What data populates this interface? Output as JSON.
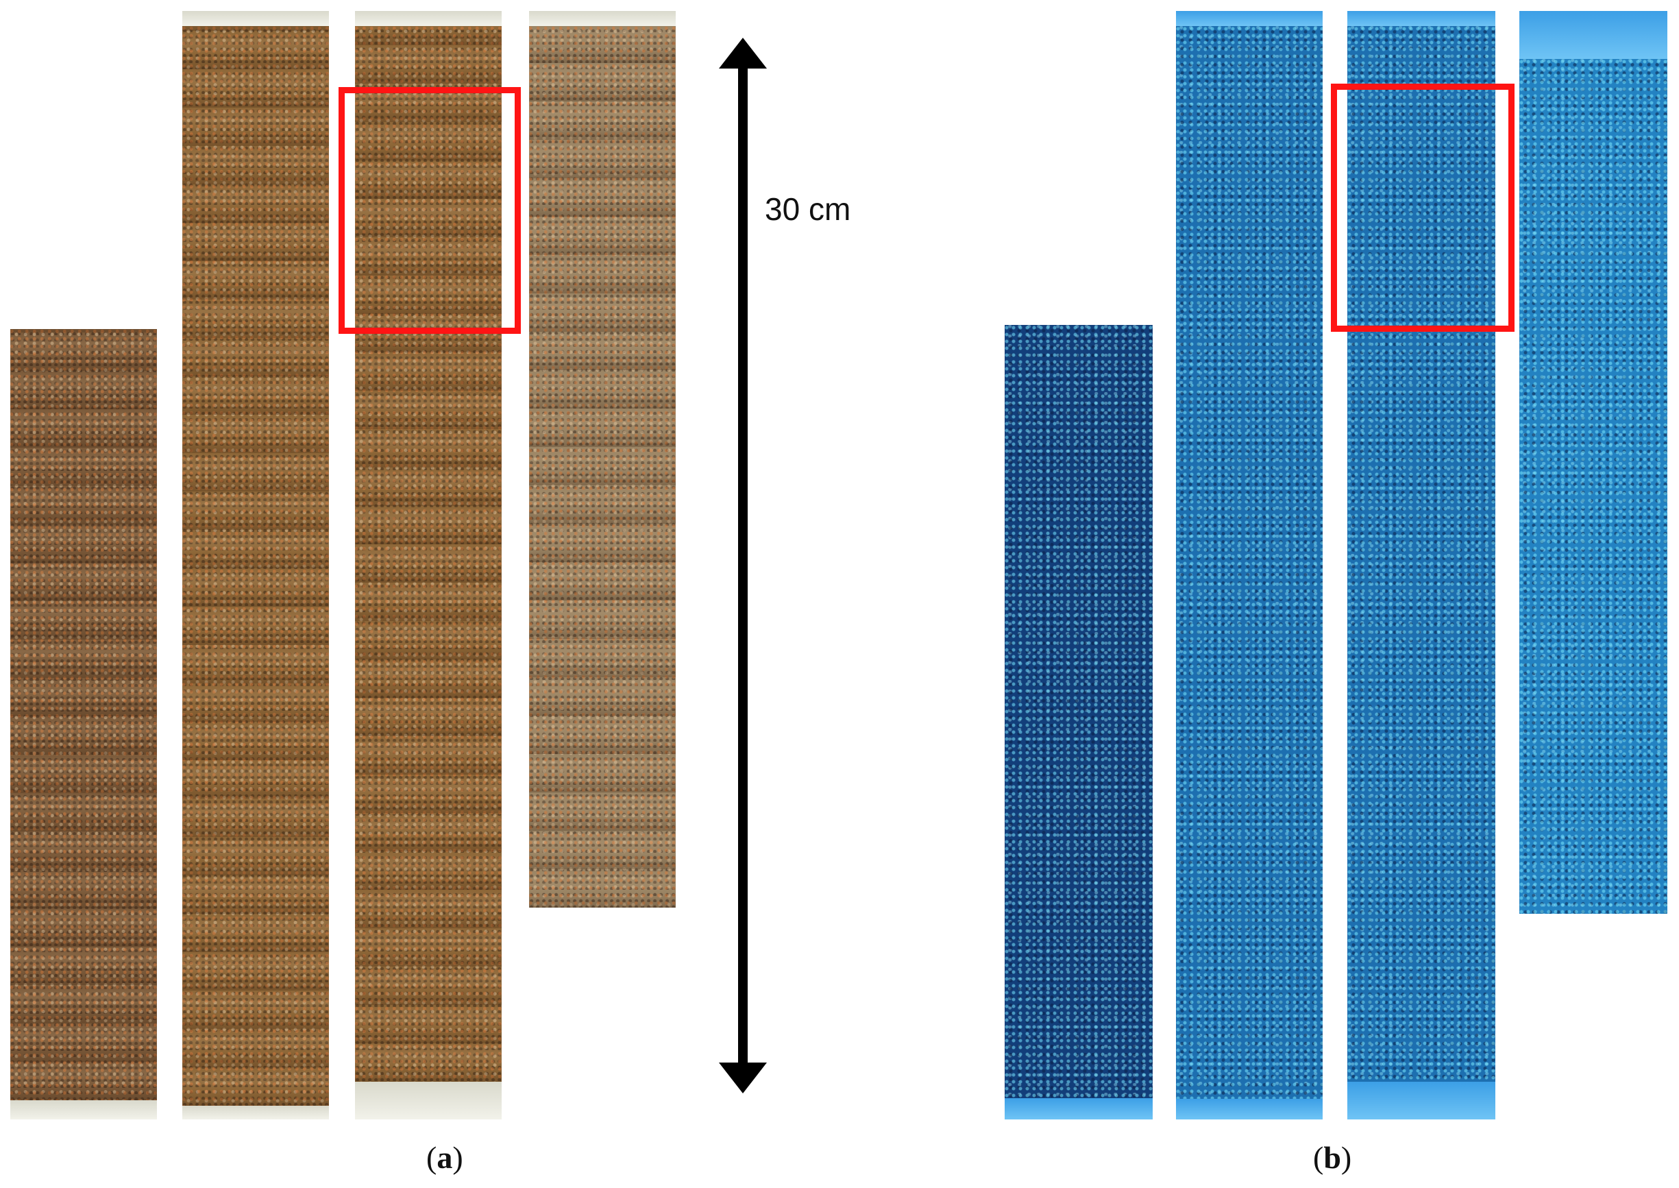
{
  "figure": {
    "scale_bar": {
      "label": "30 cm",
      "length_cm": 30
    },
    "panels": [
      {
        "id": "a",
        "label_open": "(",
        "label_letter": "a",
        "label_close": ")",
        "kind": "visible-light sediment core photos",
        "core_count": 4,
        "highlighted_core_index": 3
      },
      {
        "id": "b",
        "label_open": "(",
        "label_letter": "b",
        "label_close": ")",
        "kind": "UV fluorescence sediment core photos",
        "core_count": 4,
        "highlighted_core_index": 3
      }
    ],
    "colors": {
      "highlight": "#ff1414",
      "scale_bar": "#000000",
      "uv_base": "#1d6fb0",
      "visible_base": "#8a6238"
    }
  }
}
